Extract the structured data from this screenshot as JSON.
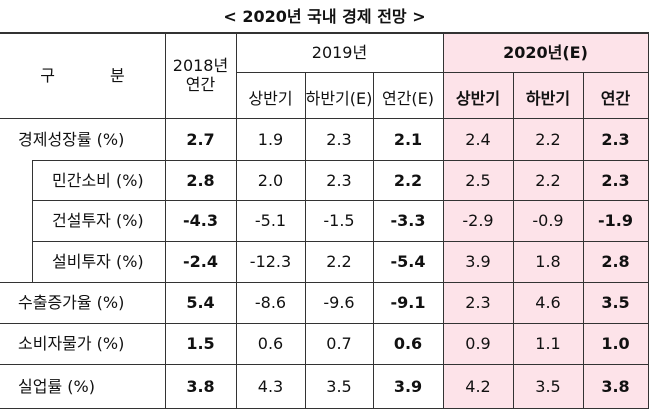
{
  "title": "< 2020년 국내 경제 전망 >",
  "header": {
    "category": "구 분",
    "y2018": [
      "2018년",
      "연간"
    ],
    "y2019": "2019년",
    "y2019_cols": [
      "상반기",
      "하반기(E)",
      "연간(E)"
    ],
    "y2020": "2020년(E)",
    "y2020_cols": [
      "상반기",
      "하반기",
      "연간"
    ]
  },
  "rows": [
    {
      "label": "경제성장률 (%)",
      "values": [
        "2.7",
        "1.9",
        "2.3",
        "2.1",
        "2.4",
        "2.2",
        "2.3"
      ]
    },
    {
      "label": "민간소비 (%)",
      "values": [
        "2.8",
        "2.0",
        "2.3",
        "2.2",
        "2.5",
        "2.2",
        "2.3"
      ]
    },
    {
      "label": "건설투자 (%)",
      "values": [
        "-4.3",
        "-5.1",
        "-1.5",
        "-3.3",
        "-2.9",
        "-0.9",
        "-1.9"
      ]
    },
    {
      "label": "설비투자 (%)",
      "values": [
        "-2.4",
        "-12.3",
        "2.2",
        "-5.4",
        "3.9",
        "1.8",
        "2.8"
      ]
    },
    {
      "label": "수출증가율 (%)",
      "values": [
        "5.4",
        "-8.6",
        "-9.6",
        "-9.1",
        "2.3",
        "4.6",
        "3.5"
      ]
    },
    {
      "label": "소비자물가 (%)",
      "values": [
        "1.5",
        "0.6",
        "0.7",
        "0.6",
        "0.9",
        "1.1",
        "1.0"
      ]
    },
    {
      "label": "실업률 (%)",
      "values": [
        "3.8",
        "4.3",
        "3.5",
        "3.9",
        "4.2",
        "3.5",
        "3.8"
      ]
    }
  ]
}
